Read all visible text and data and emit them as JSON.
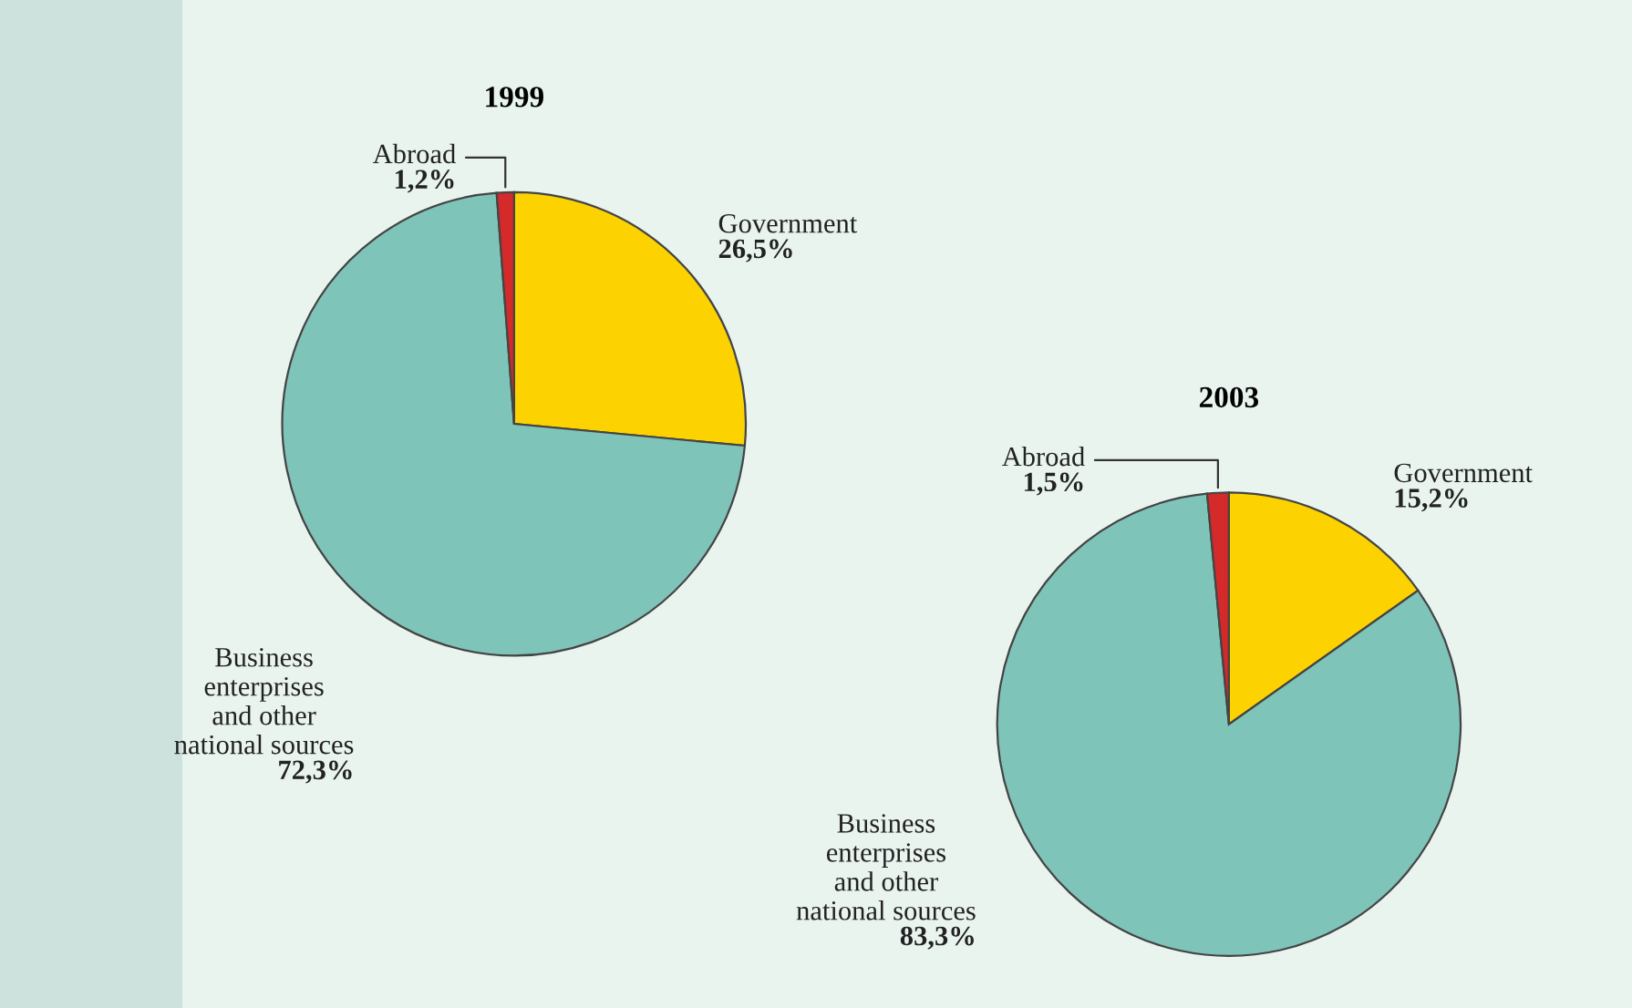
{
  "chart_data": [
    {
      "type": "pie",
      "title": "1999",
      "categories": [
        "Government",
        "Business\nenterprises\nand other\nnational sources",
        "Abroad"
      ],
      "values": [
        26.5,
        72.3,
        1.2
      ],
      "value_labels": [
        "26,5%",
        "72,3%",
        "1,2%"
      ],
      "colors": [
        "#fcd200",
        "#7fc4b8",
        "#d42a2a"
      ]
    },
    {
      "type": "pie",
      "title": "2003",
      "categories": [
        "Government",
        "Business\nenterprises\nand other\nnational sources",
        "Abroad"
      ],
      "values": [
        15.2,
        83.3,
        1.5
      ],
      "value_labels": [
        "15,2%",
        "83,3%",
        "1,5%"
      ],
      "colors": [
        "#fcd200",
        "#7fc4b8",
        "#d42a2a"
      ]
    }
  ]
}
